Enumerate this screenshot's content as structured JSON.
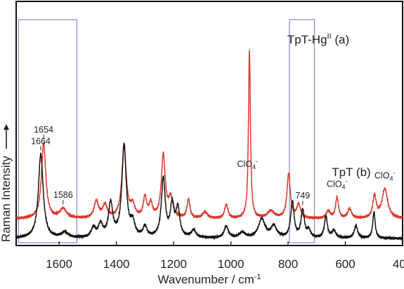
{
  "chart_data": {
    "type": "line",
    "xlabel": "Wavenumber / cm",
    "xlabel_sup": "-1",
    "ylabel": "Raman Intensity",
    "xlim": [
      1750,
      400
    ],
    "x_ticks": [
      1600,
      1400,
      1200,
      1000,
      800,
      600,
      400
    ],
    "x_tick_labels": [
      "1600",
      "1400",
      "1200",
      "1000",
      "800",
      "600",
      "400"
    ],
    "grid": false,
    "series": [
      {
        "name": "TpT-Hg",
        "name_sup": "II",
        "name_suffix": " (a)",
        "color": "#d9392b",
        "baseline": 0.93,
        "peaks": [
          {
            "x": 1654,
            "h": 3.6,
            "w": 9
          },
          {
            "x": 1586,
            "h": 0.45,
            "w": 14
          },
          {
            "x": 1470,
            "h": 0.8,
            "w": 9
          },
          {
            "x": 1440,
            "h": 0.6,
            "w": 10
          },
          {
            "x": 1373,
            "h": 3.4,
            "w": 9
          },
          {
            "x": 1343,
            "h": 0.55,
            "w": 9
          },
          {
            "x": 1300,
            "h": 0.95,
            "w": 7
          },
          {
            "x": 1280,
            "h": 0.65,
            "w": 7
          },
          {
            "x": 1236,
            "h": 3.0,
            "w": 8
          },
          {
            "x": 1210,
            "h": 0.9,
            "w": 9
          },
          {
            "x": 1148,
            "h": 0.9,
            "w": 6
          },
          {
            "x": 1090,
            "h": 0.3,
            "w": 10
          },
          {
            "x": 1016,
            "h": 0.65,
            "w": 7
          },
          {
            "x": 935,
            "h": 8.0,
            "w": 4
          },
          {
            "x": 860,
            "h": 0.35,
            "w": 14
          },
          {
            "x": 798,
            "h": 2.1,
            "w": 7
          },
          {
            "x": 763,
            "h": 0.65,
            "w": 8
          },
          {
            "x": 660,
            "h": 0.35,
            "w": 8
          },
          {
            "x": 629,
            "h": 1.0,
            "w": 6
          },
          {
            "x": 585,
            "h": 0.45,
            "w": 8
          },
          {
            "x": 498,
            "h": 1.05,
            "w": 7
          },
          {
            "x": 462,
            "h": 1.4,
            "w": 12
          }
        ]
      },
      {
        "name": "TpT",
        "name_suffix": " (b)",
        "color": "#111111",
        "baseline": 0.0,
        "peaks": [
          {
            "x": 1664,
            "h": 4.0,
            "w": 10
          },
          {
            "x": 1580,
            "h": 0.25,
            "w": 14
          },
          {
            "x": 1480,
            "h": 0.45,
            "w": 9
          },
          {
            "x": 1455,
            "h": 0.6,
            "w": 9
          },
          {
            "x": 1420,
            "h": 1.6,
            "w": 9
          },
          {
            "x": 1373,
            "h": 4.4,
            "w": 9
          },
          {
            "x": 1343,
            "h": 0.65,
            "w": 9
          },
          {
            "x": 1300,
            "h": 0.5,
            "w": 8
          },
          {
            "x": 1236,
            "h": 2.8,
            "w": 8
          },
          {
            "x": 1205,
            "h": 1.5,
            "w": 8
          },
          {
            "x": 1185,
            "h": 1.35,
            "w": 8
          },
          {
            "x": 1130,
            "h": 0.35,
            "w": 10
          },
          {
            "x": 1016,
            "h": 0.55,
            "w": 9
          },
          {
            "x": 960,
            "h": 0.25,
            "w": 12
          },
          {
            "x": 892,
            "h": 0.9,
            "w": 14
          },
          {
            "x": 850,
            "h": 0.55,
            "w": 12
          },
          {
            "x": 785,
            "h": 1.7,
            "w": 7
          },
          {
            "x": 749,
            "h": 1.3,
            "w": 7
          },
          {
            "x": 728,
            "h": 0.35,
            "w": 7
          },
          {
            "x": 668,
            "h": 1.05,
            "w": 6
          },
          {
            "x": 640,
            "h": 0.35,
            "w": 8
          },
          {
            "x": 563,
            "h": 0.6,
            "w": 7
          },
          {
            "x": 500,
            "h": 1.25,
            "w": 5
          }
        ]
      }
    ],
    "annotations": [
      {
        "text": "1654",
        "x": 1654,
        "series": 0
      },
      {
        "text": "1586",
        "x": 1586,
        "series": 0
      },
      {
        "text": "ClO",
        "sub": "4",
        "sup": "-",
        "x": 942,
        "series": 0
      },
      {
        "text": "ClO",
        "sub": "4",
        "sup": "-",
        "x": 629,
        "series": 0
      },
      {
        "text": "ClO",
        "sub": "4",
        "sup": "-",
        "x": 462,
        "series": 0
      },
      {
        "text": "1664",
        "x": 1664,
        "series": 1
      },
      {
        "text": "749",
        "x": 749,
        "series": 1
      }
    ],
    "highlight_regions": [
      {
        "x_range": [
          1742,
          1538
        ],
        "color": "#8c90c8"
      },
      {
        "x_range": [
          795,
          708
        ],
        "color": "#8c90c8"
      }
    ]
  }
}
